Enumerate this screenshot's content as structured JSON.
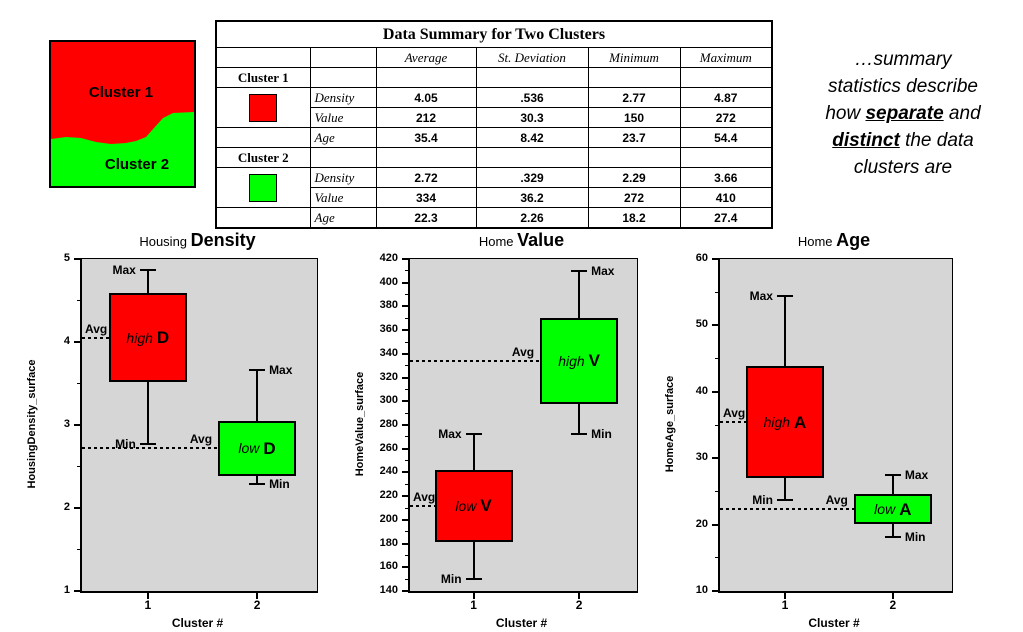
{
  "colors": {
    "cluster1": "#ff0000",
    "cluster2": "#00ff00",
    "plot_background": "#d6d6d6"
  },
  "cluster_map": {
    "label1": "Cluster 1",
    "label2": "Cluster 2"
  },
  "table": {
    "title": "Data Summary for Two Clusters",
    "col_headers": [
      "Average",
      "St. Deviation",
      "Minimum",
      "Maximum"
    ],
    "groups": [
      {
        "name": "Cluster 1",
        "swatch": "#ff0000",
        "rows": [
          {
            "label": "Density",
            "values": [
              "4.05",
              ".536",
              "2.77",
              "4.87"
            ]
          },
          {
            "label": "Value",
            "values": [
              "212",
              "30.3",
              "150",
              "272"
            ]
          },
          {
            "label": "Age",
            "values": [
              "35.4",
              "8.42",
              "23.7",
              "54.4"
            ]
          }
        ]
      },
      {
        "name": "Cluster 2",
        "swatch": "#00ff00",
        "rows": [
          {
            "label": "Density",
            "values": [
              "2.72",
              ".329",
              "2.29",
              "3.66"
            ]
          },
          {
            "label": "Value",
            "values": [
              "334",
              "36.2",
              "272",
              "410"
            ]
          },
          {
            "label": "Age",
            "values": [
              "22.3",
              "2.26",
              "18.2",
              "27.4"
            ]
          }
        ]
      }
    ]
  },
  "note": {
    "lines": [
      [
        {
          "t": "…summary"
        }
      ],
      [
        {
          "t": "statistics describe"
        }
      ],
      [
        {
          "t": "how "
        },
        {
          "t": "separate",
          "em": true
        },
        {
          "t": " and"
        }
      ],
      [
        {
          "t": "distinct",
          "em": true
        },
        {
          "t": " the data"
        }
      ],
      [
        {
          "t": "clusters are"
        }
      ]
    ]
  },
  "chart_data": [
    {
      "type": "boxplot",
      "title_light": "Housing ",
      "title_bold": "Density",
      "ylabel": "HousingDensity_surface",
      "xlabel": "Cluster #",
      "ylim": [
        1,
        5
      ],
      "ytick_step": 1,
      "minor_step": 0.5,
      "categories": [
        "1",
        "2"
      ],
      "labels": {
        "max": "Max",
        "min": "Min",
        "avg": "Avg"
      },
      "series": [
        {
          "name": "Cluster 1",
          "color": "#ff0000",
          "avg": 4.05,
          "sd": 0.536,
          "min": 2.77,
          "max": 4.87,
          "box_label_italic": "high",
          "box_label_bold": "D",
          "label_side": "left"
        },
        {
          "name": "Cluster 2",
          "color": "#00ff00",
          "avg": 2.72,
          "sd": 0.329,
          "min": 2.29,
          "max": 3.66,
          "box_label_italic": "low",
          "box_label_bold": "D",
          "label_side": "right"
        }
      ]
    },
    {
      "type": "boxplot",
      "title_light": "Home ",
      "title_bold": "Value",
      "ylabel": "HomeValue_surface",
      "xlabel": "Cluster #",
      "ylim": [
        140,
        420
      ],
      "ytick_step": 20,
      "minor_step": 10,
      "categories": [
        "1",
        "2"
      ],
      "labels": {
        "max": "Max",
        "min": "Min",
        "avg": "Avg"
      },
      "series": [
        {
          "name": "Cluster 1",
          "color": "#ff0000",
          "avg": 212,
          "sd": 30.3,
          "min": 150,
          "max": 272,
          "box_label_italic": "low",
          "box_label_bold": "V",
          "label_side": "left"
        },
        {
          "name": "Cluster 2",
          "color": "#00ff00",
          "avg": 334,
          "sd": 36.2,
          "min": 272,
          "max": 410,
          "box_label_italic": "high",
          "box_label_bold": "V",
          "label_side": "right"
        }
      ]
    },
    {
      "type": "boxplot",
      "title_light": "Home ",
      "title_bold": "Age",
      "ylabel": "HomeAge_surface",
      "xlabel": "Cluster #",
      "ylim": [
        10,
        60
      ],
      "ytick_step": 10,
      "minor_step": 5,
      "categories": [
        "1",
        "2"
      ],
      "labels": {
        "max": "Max",
        "min": "Min",
        "avg": "Avg"
      },
      "series": [
        {
          "name": "Cluster 1",
          "color": "#ff0000",
          "avg": 35.4,
          "sd": 8.42,
          "min": 23.7,
          "max": 54.4,
          "box_label_italic": "high",
          "box_label_bold": "A",
          "label_side": "left"
        },
        {
          "name": "Cluster 2",
          "color": "#00ff00",
          "avg": 22.3,
          "sd": 2.26,
          "min": 18.2,
          "max": 27.4,
          "box_label_italic": "low",
          "box_label_bold": "A",
          "label_side": "right"
        }
      ]
    }
  ]
}
